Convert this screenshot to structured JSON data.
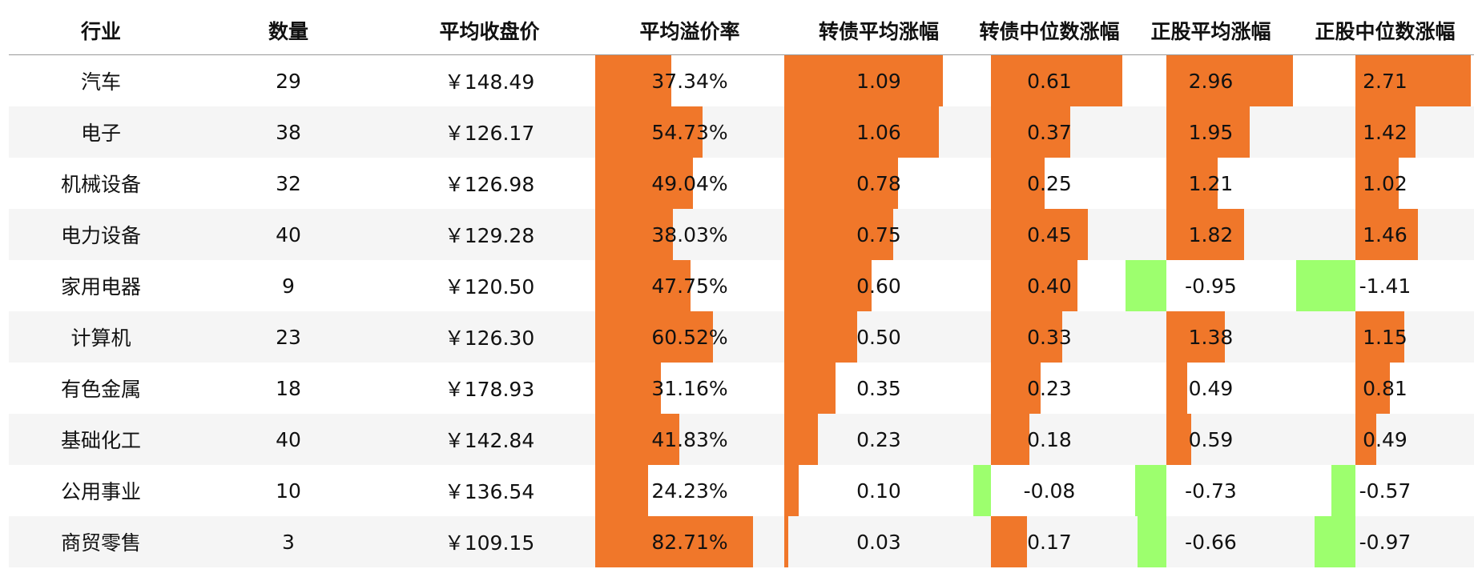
{
  "chart_data": {
    "type": "table",
    "columns": [
      "行业",
      "数量",
      "平均收盘价",
      "平均溢价率",
      "转债平均涨幅",
      "转债中位数涨幅",
      "正股平均涨幅",
      "正股中位数涨幅"
    ],
    "rows": [
      {
        "industry": "汽车",
        "count": "29",
        "price": "￥148.49",
        "premium": 37.34,
        "premium_label": "37.34%",
        "cb_mean": 1.09,
        "cb_mean_label": "1.09",
        "cb_median": 0.61,
        "cb_median_label": "0.61",
        "stk_mean": 2.96,
        "stk_mean_label": "2.96",
        "stk_median": 2.71,
        "stk_median_label": "2.71"
      },
      {
        "industry": "电子",
        "count": "38",
        "price": "￥126.17",
        "premium": 54.73,
        "premium_label": "54.73%",
        "cb_mean": 1.06,
        "cb_mean_label": "1.06",
        "cb_median": 0.37,
        "cb_median_label": "0.37",
        "stk_mean": 1.95,
        "stk_mean_label": "1.95",
        "stk_median": 1.42,
        "stk_median_label": "1.42"
      },
      {
        "industry": "机械设备",
        "count": "32",
        "price": "￥126.98",
        "premium": 49.04,
        "premium_label": "49.04%",
        "cb_mean": 0.78,
        "cb_mean_label": "0.78",
        "cb_median": 0.25,
        "cb_median_label": "0.25",
        "stk_mean": 1.21,
        "stk_mean_label": "1.21",
        "stk_median": 1.02,
        "stk_median_label": "1.02"
      },
      {
        "industry": "电力设备",
        "count": "40",
        "price": "￥129.28",
        "premium": 38.03,
        "premium_label": "38.03%",
        "cb_mean": 0.75,
        "cb_mean_label": "0.75",
        "cb_median": 0.45,
        "cb_median_label": "0.45",
        "stk_mean": 1.82,
        "stk_mean_label": "1.82",
        "stk_median": 1.46,
        "stk_median_label": "1.46"
      },
      {
        "industry": "家用电器",
        "count": "9",
        "price": "￥120.50",
        "premium": 47.75,
        "premium_label": "47.75%",
        "cb_mean": 0.6,
        "cb_mean_label": "0.60",
        "cb_median": 0.4,
        "cb_median_label": "0.40",
        "stk_mean": -0.95,
        "stk_mean_label": "-0.95",
        "stk_median": -1.41,
        "stk_median_label": "-1.41"
      },
      {
        "industry": "计算机",
        "count": "23",
        "price": "￥126.30",
        "premium": 60.52,
        "premium_label": "60.52%",
        "cb_mean": 0.5,
        "cb_mean_label": "0.50",
        "cb_median": 0.33,
        "cb_median_label": "0.33",
        "stk_mean": 1.38,
        "stk_mean_label": "1.38",
        "stk_median": 1.15,
        "stk_median_label": "1.15"
      },
      {
        "industry": "有色金属",
        "count": "18",
        "price": "￥178.93",
        "premium": 31.16,
        "premium_label": "31.16%",
        "cb_mean": 0.35,
        "cb_mean_label": "0.35",
        "cb_median": 0.23,
        "cb_median_label": "0.23",
        "stk_mean": 0.49,
        "stk_mean_label": "0.49",
        "stk_median": 0.81,
        "stk_median_label": "0.81"
      },
      {
        "industry": "基础化工",
        "count": "40",
        "price": "￥142.84",
        "premium": 41.83,
        "premium_label": "41.83%",
        "cb_mean": 0.23,
        "cb_mean_label": "0.23",
        "cb_median": 0.18,
        "cb_median_label": "0.18",
        "stk_mean": 0.59,
        "stk_mean_label": "0.59",
        "stk_median": 0.49,
        "stk_median_label": "0.49"
      },
      {
        "industry": "公用事业",
        "count": "10",
        "price": "￥136.54",
        "premium": 24.23,
        "premium_label": "24.23%",
        "cb_mean": 0.1,
        "cb_mean_label": "0.10",
        "cb_median": -0.08,
        "cb_median_label": "-0.08",
        "stk_mean": -0.73,
        "stk_mean_label": "-0.73",
        "stk_median": -0.57,
        "stk_median_label": "-0.57"
      },
      {
        "industry": "商贸零售",
        "count": "3",
        "price": "￥109.15",
        "premium": 82.71,
        "premium_label": "82.71%",
        "cb_mean": 0.03,
        "cb_mean_label": "0.03",
        "cb_median": 0.17,
        "cb_median_label": "0.17",
        "stk_mean": -0.66,
        "stk_mean_label": "-0.66",
        "stk_median": -0.97,
        "stk_median_label": "-0.97"
      }
    ],
    "bar_columns": [
      "premium",
      "cb_mean",
      "cb_median",
      "stk_mean",
      "stk_median"
    ],
    "colors": {
      "positive": "#f0772a",
      "negative": "#9dff6e",
      "stripe": "#f5f5f5"
    }
  }
}
